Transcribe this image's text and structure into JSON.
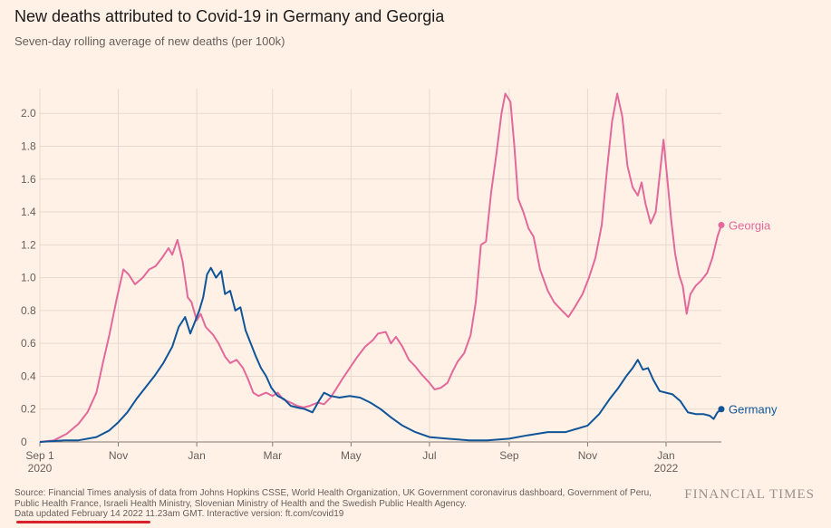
{
  "title": "New deaths attributed to Covid-19 in Germany and Georgia",
  "subtitle": "Seven-day rolling average of new deaths (per 100k)",
  "source": "Source: Financial Times analysis of data from Johns Hopkins CSSE, World Health Organization, UK Government coronavirus dashboard, Government of Peru, Public Health France, Israeli Health Ministry, Slovenian Ministry of Health and the Swedish Public Health Agency.",
  "updated": "Data updated February 14 2022 11.23am GMT. Interactive version: ft.com/covid19",
  "brand": "FINANCIAL TIMES",
  "chart_data": {
    "type": "line",
    "title": "New deaths attributed to Covid-19 in Germany and Georgia",
    "subtitle": "Seven-day rolling average of new deaths (per 100k)",
    "xlim": [
      "2020-09-01",
      "2022-02-13"
    ],
    "ylim": [
      0,
      2.15
    ],
    "grid": true,
    "y_ticks": [
      0,
      0.2,
      0.4,
      0.6,
      0.8,
      1.0,
      1.2,
      1.4,
      1.6,
      1.8,
      2.0
    ],
    "y_tick_labels": [
      "0",
      "0.2",
      "0.4",
      "0.6",
      "0.8",
      "1.0",
      "1.2",
      "1.4",
      "1.6",
      "1.8",
      "2.0"
    ],
    "x_ticks": [
      {
        "date": "2020-09-01",
        "label": "Sep 1",
        "sublabel": "2020"
      },
      {
        "date": "2020-11-01",
        "label": "Nov",
        "sublabel": ""
      },
      {
        "date": "2021-01-01",
        "label": "Jan",
        "sublabel": ""
      },
      {
        "date": "2021-03-01",
        "label": "Mar",
        "sublabel": ""
      },
      {
        "date": "2021-05-01",
        "label": "May",
        "sublabel": ""
      },
      {
        "date": "2021-07-01",
        "label": "Jul",
        "sublabel": ""
      },
      {
        "date": "2021-09-01",
        "label": "Sep",
        "sublabel": ""
      },
      {
        "date": "2021-11-01",
        "label": "Nov",
        "sublabel": ""
      },
      {
        "date": "2022-01-01",
        "label": "Jan",
        "sublabel": "2022"
      }
    ],
    "series": [
      {
        "name": "Georgia",
        "color": "#e3689b",
        "points": [
          [
            "2020-09-01",
            0
          ],
          [
            "2020-09-12",
            0.01
          ],
          [
            "2020-09-22",
            0.05
          ],
          [
            "2020-10-01",
            0.11
          ],
          [
            "2020-10-08",
            0.18
          ],
          [
            "2020-10-15",
            0.3
          ],
          [
            "2020-10-20",
            0.48
          ],
          [
            "2020-10-25",
            0.65
          ],
          [
            "2020-10-31",
            0.88
          ],
          [
            "2020-11-05",
            1.05
          ],
          [
            "2020-11-09",
            1.02
          ],
          [
            "2020-11-14",
            0.96
          ],
          [
            "2020-11-20",
            1.0
          ],
          [
            "2020-11-25",
            1.05
          ],
          [
            "2020-11-30",
            1.07
          ],
          [
            "2020-12-05",
            1.12
          ],
          [
            "2020-12-10",
            1.18
          ],
          [
            "2020-12-13",
            1.14
          ],
          [
            "2020-12-17",
            1.23
          ],
          [
            "2020-12-21",
            1.1
          ],
          [
            "2020-12-25",
            0.88
          ],
          [
            "2020-12-28",
            0.85
          ],
          [
            "2021-01-01",
            0.74
          ],
          [
            "2021-01-04",
            0.78
          ],
          [
            "2021-01-08",
            0.7
          ],
          [
            "2021-01-14",
            0.65
          ],
          [
            "2021-01-18",
            0.6
          ],
          [
            "2021-01-23",
            0.52
          ],
          [
            "2021-01-27",
            0.48
          ],
          [
            "2021-02-01",
            0.5
          ],
          [
            "2021-02-06",
            0.45
          ],
          [
            "2021-02-10",
            0.38
          ],
          [
            "2021-02-14",
            0.3
          ],
          [
            "2021-02-18",
            0.28
          ],
          [
            "2021-02-24",
            0.3
          ],
          [
            "2021-03-01",
            0.28
          ],
          [
            "2021-03-05",
            0.3
          ],
          [
            "2021-03-09",
            0.26
          ],
          [
            "2021-03-15",
            0.24
          ],
          [
            "2021-03-20",
            0.22
          ],
          [
            "2021-03-25",
            0.21
          ],
          [
            "2021-03-30",
            0.22
          ],
          [
            "2021-04-05",
            0.24
          ],
          [
            "2021-04-10",
            0.23
          ],
          [
            "2021-04-15",
            0.27
          ],
          [
            "2021-04-20",
            0.33
          ],
          [
            "2021-04-24",
            0.38
          ],
          [
            "2021-04-30",
            0.45
          ],
          [
            "2021-05-06",
            0.52
          ],
          [
            "2021-05-12",
            0.58
          ],
          [
            "2021-05-18",
            0.62
          ],
          [
            "2021-05-22",
            0.66
          ],
          [
            "2021-05-28",
            0.67
          ],
          [
            "2021-06-01",
            0.6
          ],
          [
            "2021-06-05",
            0.64
          ],
          [
            "2021-06-10",
            0.58
          ],
          [
            "2021-06-15",
            0.5
          ],
          [
            "2021-06-20",
            0.46
          ],
          [
            "2021-06-25",
            0.41
          ],
          [
            "2021-07-01",
            0.36
          ],
          [
            "2021-07-05",
            0.32
          ],
          [
            "2021-07-10",
            0.33
          ],
          [
            "2021-07-15",
            0.36
          ],
          [
            "2021-07-19",
            0.43
          ],
          [
            "2021-07-23",
            0.49
          ],
          [
            "2021-07-28",
            0.54
          ],
          [
            "2021-08-02",
            0.65
          ],
          [
            "2021-08-06",
            0.85
          ],
          [
            "2021-08-10",
            1.2
          ],
          [
            "2021-08-14",
            1.22
          ],
          [
            "2021-08-18",
            1.52
          ],
          [
            "2021-08-22",
            1.75
          ],
          [
            "2021-08-26",
            2.0
          ],
          [
            "2021-08-29",
            2.12
          ],
          [
            "2021-09-02",
            2.07
          ],
          [
            "2021-09-05",
            1.8
          ],
          [
            "2021-09-08",
            1.48
          ],
          [
            "2021-09-12",
            1.4
          ],
          [
            "2021-09-16",
            1.3
          ],
          [
            "2021-09-20",
            1.25
          ],
          [
            "2021-09-25",
            1.05
          ],
          [
            "2021-10-01",
            0.92
          ],
          [
            "2021-10-06",
            0.85
          ],
          [
            "2021-10-12",
            0.8
          ],
          [
            "2021-10-17",
            0.76
          ],
          [
            "2021-10-22",
            0.82
          ],
          [
            "2021-10-28",
            0.9
          ],
          [
            "2021-11-02",
            1.0
          ],
          [
            "2021-11-07",
            1.12
          ],
          [
            "2021-11-12",
            1.32
          ],
          [
            "2021-11-16",
            1.65
          ],
          [
            "2021-11-20",
            1.95
          ],
          [
            "2021-11-24",
            2.12
          ],
          [
            "2021-11-28",
            1.98
          ],
          [
            "2021-12-02",
            1.68
          ],
          [
            "2021-12-06",
            1.55
          ],
          [
            "2021-12-10",
            1.5
          ],
          [
            "2021-12-13",
            1.58
          ],
          [
            "2021-12-16",
            1.45
          ],
          [
            "2021-12-20",
            1.33
          ],
          [
            "2021-12-24",
            1.4
          ],
          [
            "2021-12-27",
            1.62
          ],
          [
            "2021-12-30",
            1.84
          ],
          [
            "2022-01-02",
            1.6
          ],
          [
            "2022-01-05",
            1.35
          ],
          [
            "2022-01-08",
            1.15
          ],
          [
            "2022-01-11",
            1.02
          ],
          [
            "2022-01-14",
            0.95
          ],
          [
            "2022-01-17",
            0.78
          ],
          [
            "2022-01-20",
            0.9
          ],
          [
            "2022-01-24",
            0.95
          ],
          [
            "2022-01-28",
            0.98
          ],
          [
            "2022-02-02",
            1.03
          ],
          [
            "2022-02-06",
            1.12
          ],
          [
            "2022-02-10",
            1.25
          ],
          [
            "2022-02-13",
            1.32
          ]
        ]
      },
      {
        "name": "Germany",
        "color": "#0f5499",
        "points": [
          [
            "2020-09-01",
            0
          ],
          [
            "2020-09-20",
            0.01
          ],
          [
            "2020-10-01",
            0.01
          ],
          [
            "2020-10-15",
            0.03
          ],
          [
            "2020-10-25",
            0.07
          ],
          [
            "2020-11-01",
            0.12
          ],
          [
            "2020-11-08",
            0.18
          ],
          [
            "2020-11-15",
            0.26
          ],
          [
            "2020-11-22",
            0.33
          ],
          [
            "2020-11-29",
            0.4
          ],
          [
            "2020-12-06",
            0.48
          ],
          [
            "2020-12-13",
            0.58
          ],
          [
            "2020-12-18",
            0.7
          ],
          [
            "2020-12-23",
            0.76
          ],
          [
            "2020-12-27",
            0.66
          ],
          [
            "2020-12-30",
            0.72
          ],
          [
            "2021-01-03",
            0.8
          ],
          [
            "2021-01-06",
            0.88
          ],
          [
            "2021-01-09",
            1.02
          ],
          [
            "2021-01-12",
            1.06
          ],
          [
            "2021-01-16",
            1.0
          ],
          [
            "2021-01-20",
            1.04
          ],
          [
            "2021-01-23",
            0.9
          ],
          [
            "2021-01-27",
            0.92
          ],
          [
            "2021-01-31",
            0.8
          ],
          [
            "2021-02-04",
            0.82
          ],
          [
            "2021-02-08",
            0.68
          ],
          [
            "2021-02-12",
            0.6
          ],
          [
            "2021-02-16",
            0.52
          ],
          [
            "2021-02-20",
            0.45
          ],
          [
            "2021-02-24",
            0.4
          ],
          [
            "2021-02-28",
            0.33
          ],
          [
            "2021-03-05",
            0.28
          ],
          [
            "2021-03-10",
            0.26
          ],
          [
            "2021-03-15",
            0.22
          ],
          [
            "2021-03-20",
            0.21
          ],
          [
            "2021-03-26",
            0.2
          ],
          [
            "2021-04-01",
            0.18
          ],
          [
            "2021-04-06",
            0.25
          ],
          [
            "2021-04-10",
            0.3
          ],
          [
            "2021-04-15",
            0.28
          ],
          [
            "2021-04-22",
            0.27
          ],
          [
            "2021-04-30",
            0.28
          ],
          [
            "2021-05-08",
            0.27
          ],
          [
            "2021-05-16",
            0.24
          ],
          [
            "2021-05-24",
            0.2
          ],
          [
            "2021-06-01",
            0.15
          ],
          [
            "2021-06-10",
            0.1
          ],
          [
            "2021-06-20",
            0.06
          ],
          [
            "2021-07-01",
            0.03
          ],
          [
            "2021-07-15",
            0.02
          ],
          [
            "2021-08-01",
            0.01
          ],
          [
            "2021-08-15",
            0.01
          ],
          [
            "2021-09-01",
            0.02
          ],
          [
            "2021-09-15",
            0.04
          ],
          [
            "2021-10-01",
            0.06
          ],
          [
            "2021-10-15",
            0.06
          ],
          [
            "2021-11-01",
            0.1
          ],
          [
            "2021-11-10",
            0.17
          ],
          [
            "2021-11-18",
            0.26
          ],
          [
            "2021-11-25",
            0.33
          ],
          [
            "2021-12-01",
            0.4
          ],
          [
            "2021-12-06",
            0.45
          ],
          [
            "2021-12-10",
            0.5
          ],
          [
            "2021-12-14",
            0.44
          ],
          [
            "2021-12-18",
            0.45
          ],
          [
            "2021-12-22",
            0.38
          ],
          [
            "2021-12-27",
            0.31
          ],
          [
            "2022-01-01",
            0.3
          ],
          [
            "2022-01-06",
            0.29
          ],
          [
            "2022-01-12",
            0.25
          ],
          [
            "2022-01-18",
            0.18
          ],
          [
            "2022-01-24",
            0.17
          ],
          [
            "2022-01-30",
            0.17
          ],
          [
            "2022-02-04",
            0.16
          ],
          [
            "2022-02-07",
            0.14
          ],
          [
            "2022-02-10",
            0.18
          ],
          [
            "2022-02-13",
            0.2
          ]
        ]
      }
    ]
  }
}
